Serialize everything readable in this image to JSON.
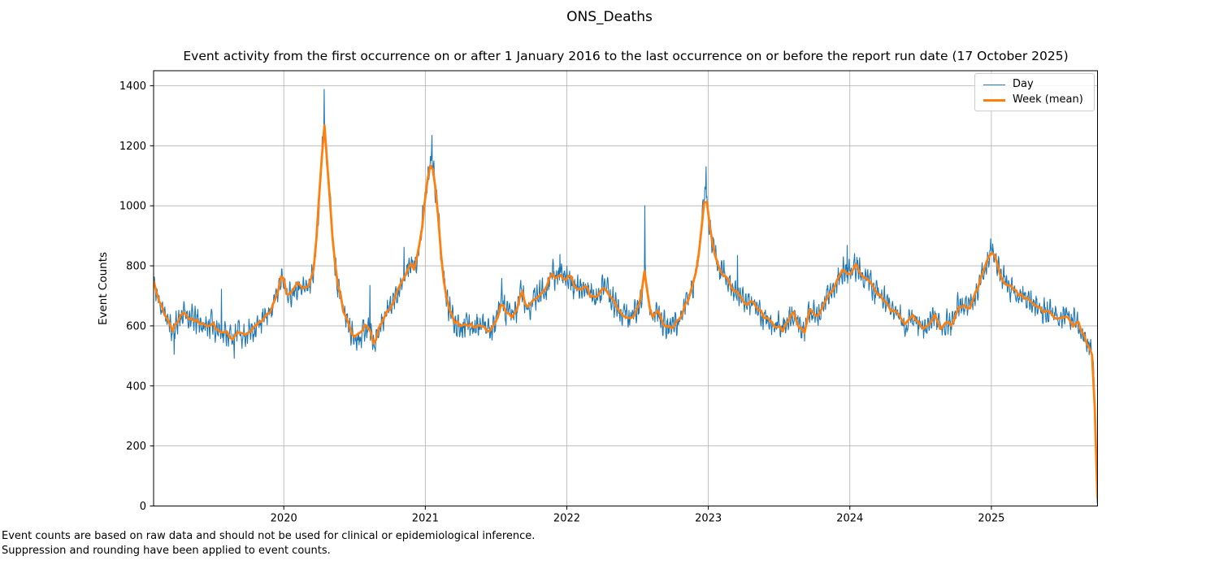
{
  "chart_data": {
    "type": "line",
    "title": "ONS_Deaths",
    "subtitle": "Event activity from the first occurrence on or after 1 January 2016 to the last occurrence on or before the report run date (17 October 2025)",
    "ylabel": "Event Counts",
    "xlabel": "",
    "x_ticks": [
      "2020",
      "2021",
      "2022",
      "2023",
      "2024",
      "2025"
    ],
    "x_tick_values": [
      2020,
      2021,
      2022,
      2023,
      2024,
      2025
    ],
    "y_ticks": [
      "0",
      "200",
      "400",
      "600",
      "800",
      "1000",
      "1200",
      "1400"
    ],
    "y_tick_values": [
      0,
      200,
      400,
      600,
      800,
      1000,
      1200,
      1400
    ],
    "xlim": [
      2019.08,
      2025.75
    ],
    "ylim": [
      0,
      1450
    ],
    "grid": true,
    "legend_position": "upper-right",
    "colors": {
      "day_line": "#1f77b4",
      "week_line": "#ff7f0e",
      "grid": "#b0b0b0",
      "spine": "#000000",
      "legend_border": "#cccccc",
      "text": "#000000"
    },
    "series": [
      {
        "name": "Day",
        "role": "daily-counts",
        "color": "#1f77b4",
        "line_width": 1.1,
        "noise": {
          "seed": 11,
          "ar": 0.45,
          "amplitude": 26,
          "weekly_cycle": 20
        },
        "outliers": [
          [
            2019.225,
            505
          ],
          [
            2019.56,
            722
          ],
          [
            2019.65,
            492
          ],
          [
            2020.285,
            1388
          ],
          [
            2020.61,
            735
          ],
          [
            2020.85,
            862
          ],
          [
            2021.047,
            1235
          ],
          [
            2021.54,
            758
          ],
          [
            2021.95,
            838
          ],
          [
            2022.55,
            1000
          ],
          [
            2022.985,
            1130
          ],
          [
            2023.205,
            835
          ],
          [
            2023.98,
            868
          ],
          [
            2024.995,
            890
          ],
          [
            2025.75,
            8
          ]
        ]
      },
      {
        "name": "Week (mean)",
        "role": "weekly-mean",
        "color": "#ff7f0e",
        "line_width": 2.8,
        "noise": {
          "seed": 5,
          "amplitude": 8
        },
        "keypoints": [
          [
            2019.08,
            748
          ],
          [
            2019.1,
            708
          ],
          [
            2019.14,
            662
          ],
          [
            2019.18,
            618
          ],
          [
            2019.215,
            582
          ],
          [
            2019.25,
            615
          ],
          [
            2019.285,
            642
          ],
          [
            2019.33,
            630
          ],
          [
            2019.37,
            618
          ],
          [
            2019.41,
            608
          ],
          [
            2019.45,
            598
          ],
          [
            2019.49,
            612
          ],
          [
            2019.53,
            590
          ],
          [
            2019.57,
            582
          ],
          [
            2019.61,
            570
          ],
          [
            2019.65,
            556
          ],
          [
            2019.68,
            588
          ],
          [
            2019.71,
            566
          ],
          [
            2019.75,
            580
          ],
          [
            2019.79,
            592
          ],
          [
            2019.83,
            608
          ],
          [
            2019.87,
            628
          ],
          [
            2019.91,
            655
          ],
          [
            2019.95,
            700
          ],
          [
            2019.99,
            778
          ],
          [
            2020.03,
            690
          ],
          [
            2020.07,
            730
          ],
          [
            2020.11,
            742
          ],
          [
            2020.15,
            722
          ],
          [
            2020.19,
            745
          ],
          [
            2020.22,
            820
          ],
          [
            2020.25,
            1030
          ],
          [
            2020.285,
            1280
          ],
          [
            2020.32,
            1070
          ],
          [
            2020.35,
            850
          ],
          [
            2020.38,
            745
          ],
          [
            2020.42,
            655
          ],
          [
            2020.46,
            598
          ],
          [
            2020.5,
            560
          ],
          [
            2020.54,
            572
          ],
          [
            2020.58,
            600
          ],
          [
            2020.61,
            585
          ],
          [
            2020.64,
            535
          ],
          [
            2020.67,
            592
          ],
          [
            2020.7,
            625
          ],
          [
            2020.74,
            652
          ],
          [
            2020.78,
            690
          ],
          [
            2020.82,
            732
          ],
          [
            2020.86,
            775
          ],
          [
            2020.89,
            806
          ],
          [
            2020.92,
            790
          ],
          [
            2020.95,
            840
          ],
          [
            2020.98,
            942
          ],
          [
            2021.01,
            1065
          ],
          [
            2021.045,
            1160
          ],
          [
            2021.08,
            1030
          ],
          [
            2021.11,
            852
          ],
          [
            2021.14,
            705
          ],
          [
            2021.17,
            658
          ],
          [
            2021.2,
            618
          ],
          [
            2021.24,
            606
          ],
          [
            2021.28,
            600
          ],
          [
            2021.32,
            606
          ],
          [
            2021.36,
            598
          ],
          [
            2021.4,
            602
          ],
          [
            2021.44,
            584
          ],
          [
            2021.48,
            592
          ],
          [
            2021.52,
            638
          ],
          [
            2021.545,
            690
          ],
          [
            2021.57,
            642
          ],
          [
            2021.61,
            636
          ],
          [
            2021.65,
            658
          ],
          [
            2021.68,
            728
          ],
          [
            2021.71,
            655
          ],
          [
            2021.75,
            672
          ],
          [
            2021.79,
            700
          ],
          [
            2021.83,
            718
          ],
          [
            2021.87,
            745
          ],
          [
            2021.9,
            778
          ],
          [
            2021.93,
            756
          ],
          [
            2021.96,
            772
          ],
          [
            2021.99,
            746
          ],
          [
            2022.02,
            768
          ],
          [
            2022.05,
            740
          ],
          [
            2022.09,
            716
          ],
          [
            2022.13,
            738
          ],
          [
            2022.17,
            700
          ],
          [
            2022.21,
            694
          ],
          [
            2022.25,
            730
          ],
          [
            2022.29,
            706
          ],
          [
            2022.33,
            684
          ],
          [
            2022.37,
            648
          ],
          [
            2022.41,
            636
          ],
          [
            2022.45,
            624
          ],
          [
            2022.49,
            650
          ],
          [
            2022.52,
            682
          ],
          [
            2022.55,
            788
          ],
          [
            2022.58,
            670
          ],
          [
            2022.61,
            628
          ],
          [
            2022.64,
            656
          ],
          [
            2022.68,
            606
          ],
          [
            2022.72,
            596
          ],
          [
            2022.76,
            602
          ],
          [
            2022.8,
            630
          ],
          [
            2022.84,
            668
          ],
          [
            2022.88,
            720
          ],
          [
            2022.92,
            800
          ],
          [
            2022.95,
            908
          ],
          [
            2022.98,
            1062
          ],
          [
            2023.01,
            932
          ],
          [
            2023.04,
            840
          ],
          [
            2023.08,
            790
          ],
          [
            2023.12,
            762
          ],
          [
            2023.16,
            730
          ],
          [
            2023.2,
            714
          ],
          [
            2023.24,
            690
          ],
          [
            2023.28,
            668
          ],
          [
            2023.32,
            682
          ],
          [
            2023.36,
            652
          ],
          [
            2023.4,
            626
          ],
          [
            2023.44,
            614
          ],
          [
            2023.48,
            600
          ],
          [
            2023.52,
            586
          ],
          [
            2023.56,
            610
          ],
          [
            2023.6,
            652
          ],
          [
            2023.64,
            592
          ],
          [
            2023.68,
            580
          ],
          [
            2023.72,
            668
          ],
          [
            2023.76,
            625
          ],
          [
            2023.8,
            648
          ],
          [
            2023.84,
            695
          ],
          [
            2023.88,
            726
          ],
          [
            2023.92,
            762
          ],
          [
            2023.95,
            788
          ],
          [
            2023.98,
            772
          ],
          [
            2024.02,
            786
          ],
          [
            2024.05,
            802
          ],
          [
            2024.08,
            776
          ],
          [
            2024.12,
            752
          ],
          [
            2024.16,
            730
          ],
          [
            2024.2,
            710
          ],
          [
            2024.24,
            684
          ],
          [
            2024.28,
            658
          ],
          [
            2024.32,
            648
          ],
          [
            2024.36,
            622
          ],
          [
            2024.4,
            608
          ],
          [
            2024.44,
            634
          ],
          [
            2024.48,
            616
          ],
          [
            2024.52,
            588
          ],
          [
            2024.56,
            606
          ],
          [
            2024.6,
            640
          ],
          [
            2024.64,
            592
          ],
          [
            2024.68,
            614
          ],
          [
            2024.72,
            600
          ],
          [
            2024.76,
            656
          ],
          [
            2024.8,
            668
          ],
          [
            2024.84,
            656
          ],
          [
            2024.88,
            696
          ],
          [
            2024.92,
            752
          ],
          [
            2024.96,
            802
          ],
          [
            2024.995,
            848
          ],
          [
            2025.03,
            826
          ],
          [
            2025.07,
            762
          ],
          [
            2025.1,
            746
          ],
          [
            2025.13,
            732
          ],
          [
            2025.17,
            718
          ],
          [
            2025.21,
            702
          ],
          [
            2025.25,
            692
          ],
          [
            2025.29,
            678
          ],
          [
            2025.33,
            666
          ],
          [
            2025.37,
            645
          ],
          [
            2025.41,
            652
          ],
          [
            2025.45,
            628
          ],
          [
            2025.49,
            618
          ],
          [
            2025.53,
            636
          ],
          [
            2025.57,
            598
          ],
          [
            2025.61,
            618
          ],
          [
            2025.64,
            585
          ],
          [
            2025.67,
            552
          ],
          [
            2025.695,
            532
          ],
          [
            2025.715,
            490
          ],
          [
            2025.73,
            330
          ],
          [
            2025.74,
            120
          ],
          [
            2025.75,
            25
          ]
        ]
      }
    ],
    "footnotes": [
      "Event counts are based on raw data and should not be used for clinical or epidemiological inference.",
      "Suppression and rounding have been applied to event counts."
    ]
  }
}
